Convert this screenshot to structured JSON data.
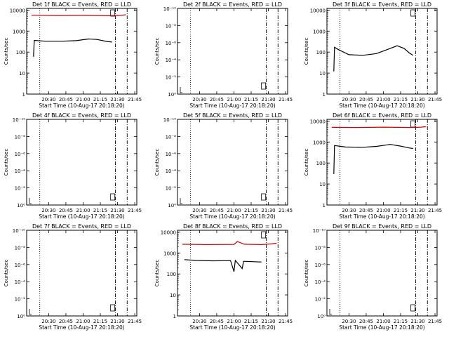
{
  "start_time_label": "Start Time (10-Aug-17 20:18:20)",
  "ylabel": "Counts/sec",
  "time_ticks": [
    "20:30",
    "20:45",
    "21:00",
    "21:15",
    "21:30",
    "21:45"
  ],
  "colors": {
    "events": "#000000",
    "lld": "#cc0000",
    "frame": "#000000"
  },
  "chart_data": [
    {
      "type": "line",
      "title": "Det 1f BLACK = Events, RED = LLD",
      "time_ticks": [
        "20:30",
        "20:45",
        "21:00",
        "21:15",
        "21:30",
        "21:45"
      ],
      "y_tick_labels": [
        "1",
        "10",
        "100",
        "1000",
        "10000"
      ],
      "ylim": [
        1,
        12000
      ],
      "yscale": "log",
      "has_data": true,
      "series": [
        {
          "color": "#cc0000",
          "values": [
            [
              20.25,
              5700
            ],
            [
              20.6,
              5500
            ],
            [
              21.0,
              5600
            ],
            [
              21.4,
              5400
            ],
            [
              21.55,
              5600
            ],
            [
              21.62,
              6000
            ]
          ]
        },
        {
          "color": "#000000",
          "values": [
            [
              20.28,
              60
            ],
            [
              20.29,
              360
            ],
            [
              20.45,
              330
            ],
            [
              20.7,
              330
            ],
            [
              20.9,
              350
            ],
            [
              21.08,
              420
            ],
            [
              21.2,
              400
            ],
            [
              21.35,
              320
            ],
            [
              21.42,
              300
            ]
          ]
        }
      ],
      "markers": {
        "sa": 21.43,
        "dotted": 20.37,
        "dashdot": 21.47,
        "dashdot2": 21.64,
        "dash": 21.63
      }
    },
    {
      "type": "line",
      "title": "Det 2f BLACK = Events, RED = LLD",
      "time_ticks": [
        "20:30",
        "20:45",
        "21:00",
        "21:15",
        "21:30",
        "21:45"
      ],
      "y_tick_labels": [
        "10⁰",
        "10⁻²",
        "10⁻⁴",
        "10⁻⁶",
        "10⁻⁸",
        "10⁻¹⁰"
      ],
      "has_data": false,
      "series": [],
      "markers": {
        "sa": 21.43,
        "dotted": 20.37,
        "dashdot": 21.47,
        "dashdot2": 21.64,
        "dash": 21.63
      }
    },
    {
      "type": "line",
      "title": "Det 3f BLACK = Events, RED = LLD",
      "time_ticks": [
        "20:30",
        "20:45",
        "21:00",
        "21:15",
        "21:30",
        "21:45"
      ],
      "y_tick_labels": [
        "1",
        "10",
        "100",
        "1000",
        "10000"
      ],
      "ylim": [
        1,
        12000
      ],
      "yscale": "log",
      "has_data": true,
      "series": [
        {
          "color": "#000000",
          "values": [
            [
              20.28,
              12
            ],
            [
              20.29,
              170
            ],
            [
              20.35,
              130
            ],
            [
              20.5,
              75
            ],
            [
              20.7,
              70
            ],
            [
              20.9,
              85
            ],
            [
              21.05,
              130
            ],
            [
              21.2,
              200
            ],
            [
              21.3,
              150
            ],
            [
              21.38,
              90
            ],
            [
              21.43,
              70
            ]
          ]
        }
      ],
      "markers": {
        "sa": 21.43,
        "dotted": 20.37,
        "dashdot": 21.47,
        "dashdot2": 21.64,
        "dash": 21.63
      }
    },
    {
      "type": "line",
      "title": "Det 4f BLACK = Events, RED = LLD",
      "time_ticks": [
        "20:30",
        "20:45",
        "21:00",
        "21:15",
        "21:30",
        "21:45"
      ],
      "y_tick_labels": [
        "10⁰",
        "10⁻²",
        "10⁻⁴",
        "10⁻⁶",
        "10⁻⁸",
        "10⁻¹⁰"
      ],
      "has_data": false,
      "series": [],
      "markers": {
        "sa": 21.43,
        "dotted": 20.37,
        "dashdot": 21.47,
        "dashdot2": 21.64,
        "dash": 21.63
      }
    },
    {
      "type": "line",
      "title": "Det 5f BLACK = Events, RED = LLD",
      "time_ticks": [
        "20:30",
        "20:45",
        "21:00",
        "21:15",
        "21:30",
        "21:45"
      ],
      "y_tick_labels": [
        "10⁰",
        "10⁻²",
        "10⁻⁴",
        "10⁻⁶",
        "10⁻⁸",
        "10⁻¹⁰"
      ],
      "has_data": false,
      "series": [],
      "markers": {
        "sa": 21.43,
        "dotted": 20.37,
        "dashdot": 21.47,
        "dashdot2": 21.64,
        "dash": 21.63
      }
    },
    {
      "type": "line",
      "title": "Det 6f BLACK = Events, RED = LLD",
      "time_ticks": [
        "20:30",
        "20:45",
        "21:00",
        "21:15",
        "21:30",
        "21:45"
      ],
      "y_tick_labels": [
        "1",
        "10",
        "100",
        "1000",
        "10000"
      ],
      "ylim": [
        1,
        12000
      ],
      "yscale": "log",
      "has_data": true,
      "series": [
        {
          "color": "#cc0000",
          "values": [
            [
              20.25,
              5000
            ],
            [
              20.6,
              4900
            ],
            [
              21.0,
              5100
            ],
            [
              21.4,
              4900
            ],
            [
              21.55,
              5100
            ],
            [
              21.62,
              5400
            ]
          ]
        },
        {
          "color": "#000000",
          "values": [
            [
              20.28,
              30
            ],
            [
              20.29,
              680
            ],
            [
              20.45,
              580
            ],
            [
              20.7,
              560
            ],
            [
              20.9,
              620
            ],
            [
              21.1,
              770
            ],
            [
              21.25,
              640
            ],
            [
              21.38,
              520
            ],
            [
              21.43,
              490
            ]
          ]
        }
      ],
      "markers": {
        "sa": 21.43,
        "dotted": 20.37,
        "dashdot": 21.47,
        "dashdot2": 21.64,
        "dash": 21.63
      }
    },
    {
      "type": "line",
      "title": "Det 7f BLACK = Events, RED = LLD",
      "time_ticks": [
        "20:30",
        "20:45",
        "21:00",
        "21:15",
        "21:30",
        "21:45"
      ],
      "y_tick_labels": [
        "10⁰",
        "10⁻²",
        "10⁻⁴",
        "10⁻⁶",
        "10⁻⁸",
        "10⁻¹⁰"
      ],
      "has_data": false,
      "series": [],
      "markers": {
        "sa": 21.43,
        "dotted": 20.37,
        "dashdot": 21.47,
        "dashdot2": 21.64,
        "dash": 21.63
      }
    },
    {
      "type": "line",
      "title": "Det 8f BLACK = Events, RED = LLD",
      "time_ticks": [
        "20:30",
        "20:45",
        "21:00",
        "21:15",
        "21:30",
        "21:45"
      ],
      "y_tick_labels": [
        "1",
        "10",
        "100",
        "1000",
        "10000"
      ],
      "ylim": [
        1,
        12000
      ],
      "yscale": "log",
      "has_data": true,
      "series": [
        {
          "color": "#cc0000",
          "values": [
            [
              20.25,
              2600
            ],
            [
              20.6,
              2500
            ],
            [
              21.0,
              2550
            ],
            [
              21.05,
              3500
            ],
            [
              21.15,
              2600
            ],
            [
              21.4,
              2500
            ],
            [
              21.55,
              2700
            ],
            [
              21.62,
              2900
            ]
          ]
        },
        {
          "color": "#000000",
          "values": [
            [
              20.28,
              480
            ],
            [
              20.45,
              440
            ],
            [
              20.7,
              420
            ],
            [
              20.95,
              430
            ],
            [
              21.0,
              130
            ],
            [
              21.02,
              440
            ],
            [
              21.12,
              180
            ],
            [
              21.14,
              400
            ],
            [
              21.3,
              380
            ],
            [
              21.4,
              370
            ]
          ]
        }
      ],
      "markers": {
        "sa": 21.43,
        "dotted": 20.37,
        "dashdot": 21.47,
        "dashdot2": 21.64,
        "dash": 21.63
      }
    },
    {
      "type": "line",
      "title": "Det 9f BLACK = Events, RED = LLD",
      "time_ticks": [
        "20:30",
        "20:45",
        "21:00",
        "21:15",
        "21:30",
        "21:45"
      ],
      "y_tick_labels": [
        "10⁰",
        "10⁻²",
        "10⁻⁴",
        "10⁻⁶",
        "10⁻⁸",
        "10⁻¹⁰"
      ],
      "has_data": false,
      "series": [],
      "markers": {
        "sa": 21.43,
        "dotted": 20.37,
        "dashdot": 21.47,
        "dashdot2": 21.64,
        "dash": 21.63
      }
    }
  ]
}
